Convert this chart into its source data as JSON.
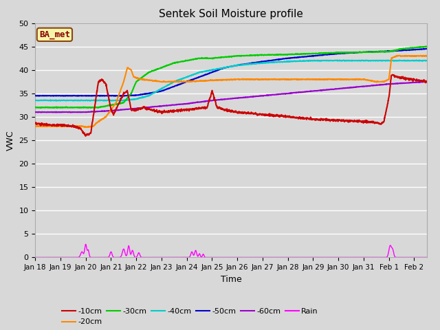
{
  "title": "Sentek Soil Moisture profile",
  "xlabel": "Time",
  "ylabel": "VWC",
  "annotation": "BA_met",
  "ylim": [
    0,
    50
  ],
  "bg_color": "#d8d8d8",
  "xtick_labels": [
    "Jan 18",
    "Jan 19",
    "Jan 20",
    "Jan 21",
    "Jan 22",
    "Jan 23",
    "Jan 24",
    "Jan 25",
    "Jan 26",
    "Jan 27",
    "Jan 28",
    "Jan 29",
    "Jan 30",
    "Jan 31",
    "Feb 1",
    "Feb 2"
  ],
  "ytick_labels": [
    0,
    5,
    10,
    15,
    20,
    25,
    30,
    35,
    40,
    45,
    50
  ],
  "colors": {
    "10cm": "#cc0000",
    "20cm": "#ff8800",
    "30cm": "#00cc00",
    "40cm": "#00cccc",
    "50cm": "#0000cc",
    "60cm": "#9900cc",
    "rain": "#ff00ff"
  },
  "line_width": 1.5,
  "n_points": 1500,
  "days": 15.5
}
